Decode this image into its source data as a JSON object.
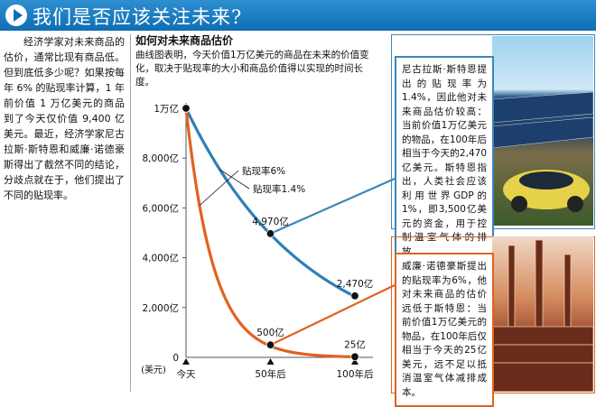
{
  "header": {
    "title": "我们是否应该关注未来?"
  },
  "left_text": "经济学家对未来商品的估价，通常比现有商品低。但到底低多少呢？如果按每年 6% 的贴现率计算，1 年前价值 1 万亿美元的商品到了今天仅价值 9,400 亿美元。最近，经济学家尼古拉斯·斯特恩和威廉·诺德豪斯得出了截然不同的结论，分歧点就在于，他们提出了不同的贴现率。",
  "chart": {
    "title": "如何对未来商品估价",
    "subtitle": "曲线图表明，今天价值1万亿美元的商品在未来的价值变化，取决于贴现率的大小和商品价值得以实现的时间长度。"
  },
  "callouts": {
    "stern": "尼古拉斯·斯特恩提出的贴现率为1.4%，因此他对未来商品估价较高：当前价值1万亿美元的物品，在100年后相当于今天的2,470亿美元。斯特恩指出，人类社会应该利用世界GDP的1%，即3,500亿美元的资金，用于控制温室气体的排放。",
    "nordhaus": "威廉·诺德豪斯提出的贴现率为6%，他对未来商品的估价远低于斯特恩：当前价值1万亿美元的物品，在100年后仅相当于今天的25亿美元，远不足以抵消温室气体减排成本。"
  },
  "chart_data": {
    "type": "line",
    "title": "如何对未来商品估价",
    "subtitle": "曲线图表明，今天价值1万亿美元的商品在未来的价值变化，取决于贴现率的大小和商品价值得以实现的时间长度。",
    "unit_label": "(美元)",
    "x": [
      0,
      50,
      100
    ],
    "x_tick_labels": [
      "今天",
      "50年后",
      "100年后"
    ],
    "y_ticks": [
      0,
      2000,
      4000,
      6000,
      8000,
      10000
    ],
    "y_tick_labels": [
      "0",
      "2,000亿",
      "4,000亿",
      "6,000亿",
      "8,000亿",
      "1万亿"
    ],
    "ylim": [
      0,
      10000
    ],
    "xlim": [
      0,
      100
    ],
    "series": [
      {
        "name": "贴现率1.4%",
        "color": "#2f7fb5",
        "rate": 0.014,
        "points": [
          [
            0,
            10000
          ],
          [
            50,
            4970
          ],
          [
            100,
            2470
          ]
        ],
        "point_labels": [
          "",
          "4,970亿",
          "2,470亿"
        ]
      },
      {
        "name": "贴现率6%",
        "color": "#e2621f",
        "rate": 0.06,
        "points": [
          [
            0,
            10000
          ],
          [
            50,
            500
          ],
          [
            100,
            25
          ]
        ],
        "point_labels": [
          "",
          "500亿",
          "25亿"
        ]
      }
    ],
    "legend": "inline"
  }
}
